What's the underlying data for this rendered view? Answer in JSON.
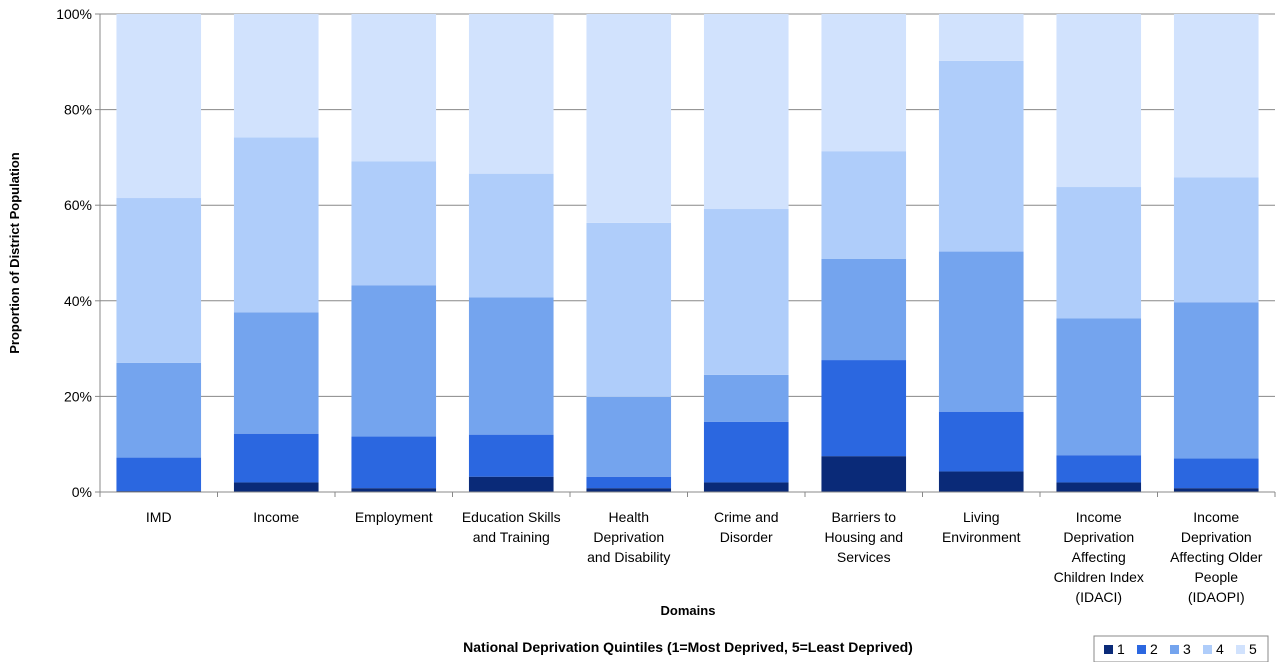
{
  "chart_data": {
    "type": "bar",
    "stacked": true,
    "percent": true,
    "ylabel": "Proportion of District Population",
    "xlabel": "Domains",
    "legend_title": "National Deprivation Quintiles (1=Most Deprived, 5=Least Deprived)",
    "legend_position": "bottom-right",
    "ylim": [
      0,
      100
    ],
    "yticks": [
      "0%",
      "20%",
      "40%",
      "60%",
      "80%",
      "100%"
    ],
    "grid": true,
    "categories": [
      "IMD",
      "Income",
      "Employment",
      "Education Skills and Training",
      "Health Deprivation and Disability",
      "Crime and Disorder",
      "Barriers to Housing and Services",
      "Living Environment",
      "Income Deprivation Affecting Children Index (IDACI)",
      "Income Deprivation Affecting Older People (IDAOPI)"
    ],
    "category_lines": [
      [
        "IMD"
      ],
      [
        "Income"
      ],
      [
        "Employment"
      ],
      [
        "Education Skills",
        "and Training"
      ],
      [
        "Health",
        "Deprivation",
        "and Disability"
      ],
      [
        "Crime and",
        "Disorder"
      ],
      [
        "Barriers to",
        "Housing and",
        "Services"
      ],
      [
        "Living",
        "Environment"
      ],
      [
        "Income",
        "Deprivation",
        "Affecting",
        "Children Index",
        "(IDACI)"
      ],
      [
        "Income",
        "Deprivation",
        "Affecting Older",
        "People",
        "(IDAOPI)"
      ]
    ],
    "series": [
      {
        "name": "1",
        "color": "#0a2a78",
        "values": [
          0.2,
          2.0,
          0.8,
          3.2,
          0.8,
          2.0,
          7.5,
          4.3,
          2.0,
          0.8
        ]
      },
      {
        "name": "2",
        "color": "#2b67e0",
        "values": [
          7.0,
          10.2,
          10.8,
          8.8,
          2.4,
          12.7,
          20.1,
          12.5,
          5.7,
          6.2
        ]
      },
      {
        "name": "3",
        "color": "#74a4ee",
        "values": [
          19.8,
          25.4,
          31.6,
          28.7,
          16.7,
          9.8,
          21.2,
          33.5,
          28.6,
          32.7
        ]
      },
      {
        "name": "4",
        "color": "#afcdfa",
        "values": [
          34.5,
          36.6,
          26.0,
          25.9,
          36.4,
          34.7,
          22.5,
          39.9,
          27.5,
          26.1
        ]
      },
      {
        "name": "5",
        "color": "#d1e2fd",
        "values": [
          38.5,
          25.8,
          30.8,
          33.4,
          43.7,
          40.8,
          28.7,
          9.8,
          36.2,
          34.2
        ]
      }
    ]
  }
}
